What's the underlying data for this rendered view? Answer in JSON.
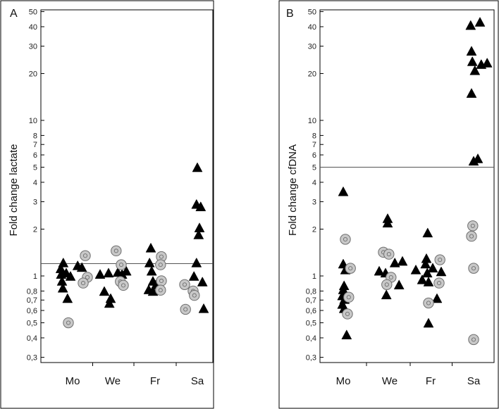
{
  "chart_data": [
    {
      "type": "scatter",
      "panel_label": "A",
      "ylabel": "Fold change lactate",
      "yscale": "log",
      "ylim": [
        0.27,
        50
      ],
      "yticks": [
        {
          "v": 0.3,
          "label": "0,3"
        },
        {
          "v": 0.4,
          "label": "0,4"
        },
        {
          "v": 0.5,
          "label": "0,5"
        },
        {
          "v": 0.6,
          "label": "0,6"
        },
        {
          "v": 0.7,
          "label": "0,7"
        },
        {
          "v": 0.8,
          "label": "0,8"
        },
        {
          "v": 1,
          "label": "1"
        },
        {
          "v": 2,
          "label": "2"
        },
        {
          "v": 3,
          "label": "3"
        },
        {
          "v": 4,
          "label": "4"
        },
        {
          "v": 5,
          "label": "5"
        },
        {
          "v": 6,
          "label": "6"
        },
        {
          "v": 7,
          "label": "7"
        },
        {
          "v": 8,
          "label": "8"
        },
        {
          "v": 10,
          "label": "10"
        },
        {
          "v": 20,
          "label": "20"
        },
        {
          "v": 30,
          "label": "30"
        },
        {
          "v": 40,
          "label": "40"
        },
        {
          "v": 50,
          "label": "50"
        }
      ],
      "categories": [
        "Mo",
        "We",
        "Fr",
        "Sa"
      ],
      "reference_line": 1.2,
      "series": [
        {
          "marker": "triangle",
          "points": [
            {
              "x": "Mo",
              "dx": -0.22,
              "y": 1.22
            },
            {
              "x": "Mo",
              "dx": -0.28,
              "y": 1.12
            },
            {
              "x": "Mo",
              "dx": -0.15,
              "y": 1.05
            },
            {
              "x": "Mo",
              "dx": -0.27,
              "y": 1.03
            },
            {
              "x": "Mo",
              "dx": -0.25,
              "y": 0.93
            },
            {
              "x": "Mo",
              "dx": -0.23,
              "y": 0.84
            },
            {
              "x": "Mo",
              "dx": -0.12,
              "y": 0.72
            },
            {
              "x": "Mo",
              "dx": -0.05,
              "y": 1.0
            },
            {
              "x": "Mo",
              "dx": 0.12,
              "y": 1.17
            },
            {
              "x": "Mo",
              "dx": 0.22,
              "y": 1.14
            },
            {
              "x": "We",
              "dx": -0.3,
              "y": 1.03
            },
            {
              "x": "We",
              "dx": -0.2,
              "y": 0.8
            },
            {
              "x": "We",
              "dx": -0.1,
              "y": 1.05
            },
            {
              "x": "We",
              "dx": -0.05,
              "y": 0.72
            },
            {
              "x": "We",
              "dx": -0.08,
              "y": 0.67
            },
            {
              "x": "We",
              "dx": 0.22,
              "y": 1.03
            },
            {
              "x": "We",
              "dx": 0.32,
              "y": 1.08
            },
            {
              "x": "We",
              "dx": 0.12,
              "y": 1.06
            },
            {
              "x": "Fr",
              "dx": -0.1,
              "y": 1.52
            },
            {
              "x": "Fr",
              "dx": -0.13,
              "y": 1.22
            },
            {
              "x": "Fr",
              "dx": -0.08,
              "y": 1.08
            },
            {
              "x": "Fr",
              "dx": -0.05,
              "y": 0.93
            },
            {
              "x": "Fr",
              "dx": -0.15,
              "y": 0.82
            },
            {
              "x": "Fr",
              "dx": -0.05,
              "y": 0.8
            },
            {
              "x": "Fr",
              "dx": 0.02,
              "y": 0.88
            },
            {
              "x": "Sa",
              "dx": 0.0,
              "y": 5.0
            },
            {
              "x": "Sa",
              "dx": -0.02,
              "y": 2.9
            },
            {
              "x": "Sa",
              "dx": 0.08,
              "y": 2.8
            },
            {
              "x": "Sa",
              "dx": 0.05,
              "y": 2.05
            },
            {
              "x": "Sa",
              "dx": 0.03,
              "y": 1.85
            },
            {
              "x": "Sa",
              "dx": -0.02,
              "y": 1.22
            },
            {
              "x": "Sa",
              "dx": -0.08,
              "y": 1.0
            },
            {
              "x": "Sa",
              "dx": 0.12,
              "y": 0.92
            },
            {
              "x": "Sa",
              "dx": 0.15,
              "y": 0.62
            }
          ]
        },
        {
          "marker": "circle",
          "points": [
            {
              "x": "Mo",
              "dx": 0.3,
              "y": 1.35
            },
            {
              "x": "Mo",
              "dx": 0.35,
              "y": 0.98
            },
            {
              "x": "Mo",
              "dx": 0.25,
              "y": 0.9
            },
            {
              "x": "Mo",
              "dx": -0.1,
              "y": 0.5
            },
            {
              "x": "We",
              "dx": 0.08,
              "y": 1.45
            },
            {
              "x": "We",
              "dx": 0.2,
              "y": 1.18
            },
            {
              "x": "We",
              "dx": 0.18,
              "y": 0.92
            },
            {
              "x": "We",
              "dx": 0.25,
              "y": 0.87
            },
            {
              "x": "Fr",
              "dx": 0.15,
              "y": 1.33
            },
            {
              "x": "Fr",
              "dx": 0.13,
              "y": 1.18
            },
            {
              "x": "Fr",
              "dx": 0.15,
              "y": 0.93
            },
            {
              "x": "Fr",
              "dx": 0.13,
              "y": 0.81
            },
            {
              "x": "Sa",
              "dx": -0.3,
              "y": 0.88
            },
            {
              "x": "Sa",
              "dx": -0.1,
              "y": 0.8
            },
            {
              "x": "Sa",
              "dx": -0.07,
              "y": 0.75
            },
            {
              "x": "Sa",
              "dx": -0.28,
              "y": 0.61
            }
          ]
        }
      ]
    },
    {
      "type": "scatter",
      "panel_label": "B",
      "ylabel": "Fold change cfDNA",
      "yscale": "log",
      "ylim": [
        0.27,
        50
      ],
      "yticks": [
        {
          "v": 0.3,
          "label": "0,3"
        },
        {
          "v": 0.4,
          "label": "0,4"
        },
        {
          "v": 0.5,
          "label": "0,5"
        },
        {
          "v": 0.6,
          "label": "0,6"
        },
        {
          "v": 0.7,
          "label": "0,7"
        },
        {
          "v": 0.8,
          "label": "0,8"
        },
        {
          "v": 1,
          "label": "1"
        },
        {
          "v": 2,
          "label": "2"
        },
        {
          "v": 3,
          "label": "3"
        },
        {
          "v": 4,
          "label": "4"
        },
        {
          "v": 5,
          "label": "5"
        },
        {
          "v": 6,
          "label": "6"
        },
        {
          "v": 7,
          "label": "7"
        },
        {
          "v": 8,
          "label": "8"
        },
        {
          "v": 10,
          "label": "10"
        },
        {
          "v": 20,
          "label": "20"
        },
        {
          "v": 30,
          "label": "30"
        },
        {
          "v": 40,
          "label": "40"
        },
        {
          "v": 50,
          "label": "50"
        }
      ],
      "categories": [
        "Mo",
        "We",
        "Fr",
        "Sa"
      ],
      "reference_line": 5.0,
      "series": [
        {
          "marker": "triangle",
          "points": [
            {
              "x": "Mo",
              "dx": 0.0,
              "y": 3.5
            },
            {
              "x": "Mo",
              "dx": 0.0,
              "y": 1.2
            },
            {
              "x": "Mo",
              "dx": 0.05,
              "y": 1.1
            },
            {
              "x": "Mo",
              "dx": 0.02,
              "y": 0.87
            },
            {
              "x": "Mo",
              "dx": 0.0,
              "y": 0.82
            },
            {
              "x": "Mo",
              "dx": -0.02,
              "y": 0.75
            },
            {
              "x": "Mo",
              "dx": 0.03,
              "y": 0.71
            },
            {
              "x": "Mo",
              "dx": -0.02,
              "y": 0.66
            },
            {
              "x": "Mo",
              "dx": 0.02,
              "y": 0.62
            },
            {
              "x": "Mo",
              "dx": 0.08,
              "y": 0.42
            },
            {
              "x": "We",
              "dx": -0.05,
              "y": 2.35
            },
            {
              "x": "We",
              "dx": -0.05,
              "y": 2.2
            },
            {
              "x": "We",
              "dx": -0.25,
              "y": 1.08
            },
            {
              "x": "We",
              "dx": -0.1,
              "y": 1.05
            },
            {
              "x": "We",
              "dx": -0.08,
              "y": 0.76
            },
            {
              "x": "We",
              "dx": 0.12,
              "y": 1.22
            },
            {
              "x": "We",
              "dx": 0.3,
              "y": 1.25
            },
            {
              "x": "We",
              "dx": 0.22,
              "y": 0.88
            },
            {
              "x": "Fr",
              "dx": -0.35,
              "y": 1.1
            },
            {
              "x": "Fr",
              "dx": -0.2,
              "y": 0.95
            },
            {
              "x": "Fr",
              "dx": -0.07,
              "y": 1.9
            },
            {
              "x": "Fr",
              "dx": -0.1,
              "y": 1.3
            },
            {
              "x": "Fr",
              "dx": -0.12,
              "y": 1.2
            },
            {
              "x": "Fr",
              "dx": -0.08,
              "y": 1.05
            },
            {
              "x": "Fr",
              "dx": -0.05,
              "y": 0.92
            },
            {
              "x": "Fr",
              "dx": 0.05,
              "y": 1.13
            },
            {
              "x": "Fr",
              "dx": 0.25,
              "y": 1.07
            },
            {
              "x": "Fr",
              "dx": 0.15,
              "y": 0.72
            },
            {
              "x": "Fr",
              "dx": -0.05,
              "y": 0.5
            },
            {
              "x": "Sa",
              "dx": -0.07,
              "y": 41
            },
            {
              "x": "Sa",
              "dx": 0.15,
              "y": 43
            },
            {
              "x": "Sa",
              "dx": -0.05,
              "y": 28
            },
            {
              "x": "Sa",
              "dx": -0.03,
              "y": 24
            },
            {
              "x": "Sa",
              "dx": 0.18,
              "y": 23
            },
            {
              "x": "Sa",
              "dx": 0.32,
              "y": 23.5
            },
            {
              "x": "Sa",
              "dx": 0.03,
              "y": 21
            },
            {
              "x": "Sa",
              "dx": -0.05,
              "y": 15
            },
            {
              "x": "Sa",
              "dx": 0.1,
              "y": 5.7
            },
            {
              "x": "Sa",
              "dx": 0.0,
              "y": 5.5
            }
          ]
        },
        {
          "marker": "circle",
          "points": [
            {
              "x": "Mo",
              "dx": 0.05,
              "y": 1.72
            },
            {
              "x": "Mo",
              "dx": 0.17,
              "y": 1.12
            },
            {
              "x": "Mo",
              "dx": 0.13,
              "y": 0.73
            },
            {
              "x": "Mo",
              "dx": 0.1,
              "y": 0.57
            },
            {
              "x": "We",
              "dx": -0.15,
              "y": 1.42
            },
            {
              "x": "We",
              "dx": -0.02,
              "y": 1.38
            },
            {
              "x": "We",
              "dx": 0.03,
              "y": 0.98
            },
            {
              "x": "We",
              "dx": -0.07,
              "y": 0.88
            },
            {
              "x": "Fr",
              "dx": 0.22,
              "y": 1.27
            },
            {
              "x": "Fr",
              "dx": 0.2,
              "y": 0.9
            },
            {
              "x": "Fr",
              "dx": -0.05,
              "y": 0.67
            },
            {
              "x": "Sa",
              "dx": -0.02,
              "y": 2.1
            },
            {
              "x": "Sa",
              "dx": -0.05,
              "y": 1.8
            },
            {
              "x": "Sa",
              "dx": 0.0,
              "y": 1.12
            },
            {
              "x": "Sa",
              "dx": 0.0,
              "y": 0.39
            }
          ]
        }
      ]
    }
  ]
}
